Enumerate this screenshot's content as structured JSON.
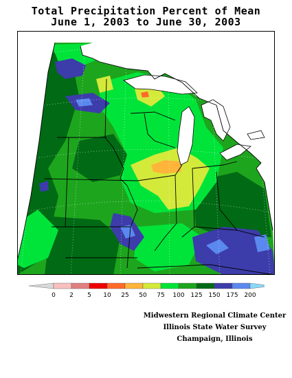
{
  "title": {
    "line1": "Total Precipitation Percent of Mean",
    "line2": "June 1, 2003 to June 30, 2003"
  },
  "legend": {
    "ticks": [
      "0",
      "2",
      "5",
      "10",
      "25",
      "50",
      "75",
      "100",
      "125",
      "150",
      "175",
      "200"
    ],
    "colors": [
      "#d9d9d9",
      "#f8c0c0",
      "#e08080",
      "#ee0000",
      "#ff6a2a",
      "#ffb43a",
      "#d4ea3a",
      "#00e43a",
      "#1ea51e",
      "#006a14",
      "#3c3caa",
      "#5a88ee",
      "#8ad8f8"
    ]
  },
  "credits": {
    "line1": "Midwestern Regional Climate Center",
    "line2": "Illinois State Water Survey",
    "line3": "Champaign, Illinois"
  },
  "map": {
    "colors": {
      "land_base": "#1ea51e",
      "dark_green": "#006a14",
      "bright_green": "#00e43a",
      "yellow_green": "#d4ea3a",
      "orange": "#ffb43a",
      "red_orange": "#ff6a2a",
      "dark_blue": "#3c3caa",
      "light_blue": "#5a88ee",
      "no_data": "#ffffff"
    }
  }
}
